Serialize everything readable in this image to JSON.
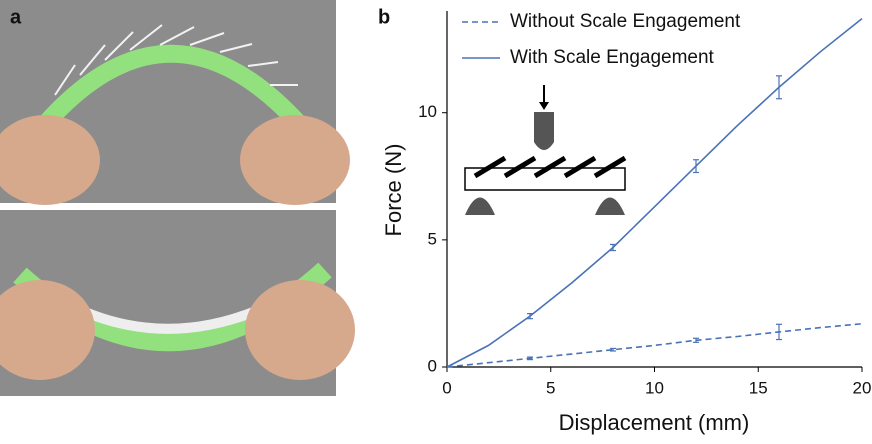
{
  "chart_data": {
    "type": "line",
    "panel_labels": [
      "a",
      "b"
    ],
    "x_label": "Displacement (mm)",
    "y_label": "Force (N)",
    "x": [
      0,
      2,
      4,
      6,
      8,
      10,
      12,
      14,
      16,
      18,
      20
    ],
    "series": [
      {
        "name": "Without Scale Engagement",
        "color": "#4a72b8",
        "dash": true,
        "values": [
          0,
          0.17,
          0.34,
          0.51,
          0.68,
          0.85,
          1.05,
          1.2,
          1.38,
          1.55,
          1.7
        ],
        "errors": [
          null,
          null,
          0.05,
          null,
          0.05,
          null,
          0.08,
          null,
          0.3,
          null,
          null
        ]
      },
      {
        "name": "With Scale Engagement",
        "color": "#4a72b8",
        "dash": false,
        "values": [
          0,
          0.85,
          2.0,
          3.3,
          4.7,
          6.3,
          7.9,
          9.5,
          11.0,
          12.4,
          13.7
        ],
        "errors": [
          null,
          null,
          0.1,
          null,
          0.12,
          null,
          0.25,
          null,
          0.45,
          null,
          null
        ]
      }
    ],
    "xlim": [
      0,
      20
    ],
    "xticks": [
      0,
      5,
      10,
      15,
      20
    ],
    "ylim": [
      0,
      14
    ],
    "yticks": [
      0,
      5,
      10
    ],
    "legend": "upper left",
    "grid": false
  }
}
